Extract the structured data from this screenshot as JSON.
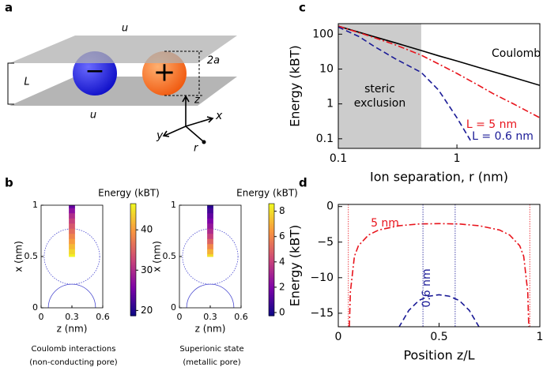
{
  "panel_labels": [
    "a",
    "b",
    "c",
    "d"
  ],
  "diagram": {
    "top_label": "u",
    "bottom_label": "u",
    "gap_label": "L",
    "diameter_label": "2a",
    "anion": "−",
    "cation": "+",
    "axis_z": "z",
    "axis_x": "x",
    "axis_y": "y",
    "axis_r": "r"
  },
  "chart_data": [
    {
      "type": "line",
      "xlabel": "Ion separation, r (nm)",
      "ylabel": "Energy (kBT)",
      "xlog": true,
      "ylog": true,
      "xlim": [
        0.1,
        5
      ],
      "ylim": [
        0.053,
        200
      ],
      "xticks": [
        0.1,
        1
      ],
      "yticks": [
        0.1,
        1,
        10,
        100
      ],
      "shaded": {
        "x": [
          0.1,
          0.5
        ],
        "color": "#cccccc",
        "label": [
          "steric",
          "exclusion"
        ]
      },
      "series": [
        {
          "name": "Coulomb",
          "color": "#000000",
          "dash": "solid",
          "x": [
            0.1,
            0.15,
            0.2,
            0.3,
            0.5,
            0.7,
            1,
            1.5,
            2,
            3,
            5
          ],
          "values": [
            170,
            113,
            85,
            57,
            34,
            24,
            17,
            11.3,
            8.5,
            5.7,
            3.4
          ]
        },
        {
          "name": "L = 5 nm",
          "color": "#e8141c",
          "dash": "dashdot",
          "x": [
            0.1,
            0.15,
            0.2,
            0.3,
            0.5,
            0.7,
            1,
            1.5,
            2,
            3,
            5
          ],
          "values": [
            170,
            110,
            80,
            50,
            25,
            14,
            7.5,
            3.5,
            2,
            1,
            0.4
          ]
        },
        {
          "name": "L = 0.6 nm",
          "color": "#1a1a96",
          "dash": "dashed",
          "x": [
            0.1,
            0.15,
            0.2,
            0.3,
            0.5,
            0.7,
            1,
            1.3
          ],
          "values": [
            160,
            85,
            45,
            20,
            8,
            2.5,
            0.4,
            0.09
          ]
        }
      ]
    },
    {
      "type": "line",
      "xlabel": "Position z/L",
      "ylabel": "Energy (kBT)",
      "xlim": [
        0,
        1
      ],
      "ylim": [
        -16.9,
        0.3
      ],
      "xticks": [
        0,
        0.5,
        1
      ],
      "yticks": [
        0,
        {
          "value": -5,
          "label": "−5"
        },
        {
          "value": -10,
          "label": "−10"
        },
        {
          "value": -15,
          "label": "−15"
        }
      ],
      "series": [
        {
          "name": "5 nm",
          "color": "#e8141c",
          "dash": "dashdot",
          "walls": [
            0.05,
            0.95
          ],
          "x": [
            0.055,
            0.06,
            0.08,
            0.1,
            0.15,
            0.2,
            0.3,
            0.4,
            0.5,
            0.6,
            0.7,
            0.8,
            0.85,
            0.9,
            0.92,
            0.94,
            0.945
          ],
          "values": [
            -16.9,
            -12,
            -7,
            -5.5,
            -4,
            -3.3,
            -2.7,
            -2.45,
            -2.4,
            -2.45,
            -2.7,
            -3.3,
            -4,
            -5.5,
            -7,
            -12,
            -16.9
          ]
        },
        {
          "name": "0.6 nm",
          "color": "#1a1a96",
          "dash": "dashed",
          "walls": [
            0.42,
            0.58
          ],
          "x": [
            0.3,
            0.35,
            0.4,
            0.45,
            0.5,
            0.55,
            0.6,
            0.65,
            0.7
          ],
          "values": [
            -17,
            -14.6,
            -13.2,
            -12.6,
            -12.4,
            -12.6,
            -13.2,
            -14.6,
            -17
          ]
        }
      ]
    },
    {
      "type": "heatmap",
      "xlabel": "z (nm)",
      "ylabel": "x (nm)",
      "xlim": [
        0,
        0.6
      ],
      "ylim": [
        0,
        1
      ],
      "xticks": [
        0,
        0.3,
        0.6
      ],
      "yticks": [
        0,
        0.5,
        1
      ],
      "colorbar_label": "Energy (kBT)",
      "clim": [
        18.7,
        46.5
      ],
      "cticks": [
        20,
        30,
        40
      ],
      "colormap": [
        "#0d0887",
        "#7e03a8",
        "#cc4778",
        "#f89540",
        "#f0f921"
      ],
      "strip_z": 0.3,
      "x": [
        0.5,
        0.55,
        0.6,
        0.65,
        0.7,
        0.75,
        0.8,
        0.85,
        0.9,
        0.95,
        1.0
      ],
      "values": [
        46,
        44,
        42,
        40,
        38,
        36,
        34,
        32,
        30,
        27,
        24
      ],
      "caption": [
        "Coulomb interactions",
        "(non-conducting pore)"
      ]
    },
    {
      "type": "heatmap",
      "xlabel": "z (nm)",
      "ylabel": "x (nm)",
      "xlim": [
        0,
        0.6
      ],
      "ylim": [
        0,
        1
      ],
      "xticks": [
        0,
        0.3,
        0.6
      ],
      "yticks": [
        0,
        0.5,
        1
      ],
      "colorbar_label": "Energy (kBT)",
      "clim": [
        -0.25,
        8.6
      ],
      "cticks": [
        0,
        2,
        4,
        6,
        8
      ],
      "colormap": [
        "#0d0887",
        "#7e03a8",
        "#cc4778",
        "#f89540",
        "#f0f921"
      ],
      "strip_z": 0.3,
      "x": [
        0.5,
        0.55,
        0.6,
        0.65,
        0.7,
        0.75,
        0.8,
        0.85,
        0.9,
        0.95,
        1.0
      ],
      "values": [
        8,
        7,
        6,
        5,
        4,
        3.3,
        2.6,
        2,
        1.4,
        0.8,
        0.3
      ],
      "caption": [
        "Superionic state",
        "(metallic pore)"
      ]
    }
  ]
}
